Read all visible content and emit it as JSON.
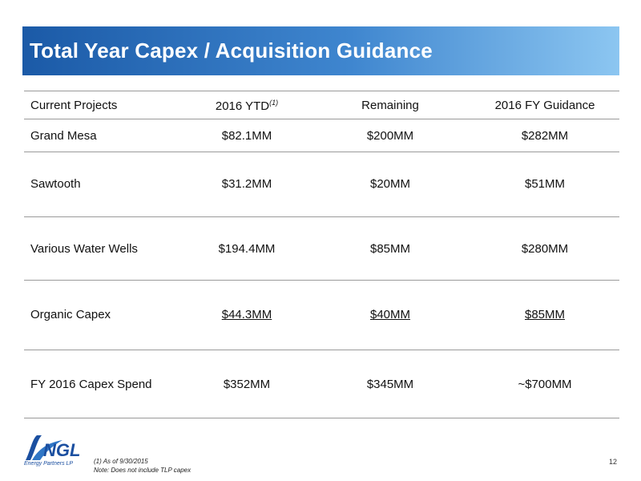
{
  "title": "Total Year Capex / Acquisition Guidance",
  "table": {
    "headers": [
      "Current Projects",
      "2016 YTD",
      "Remaining",
      "2016 FY Guidance"
    ],
    "header_footnote_marker": "(1)",
    "rows": [
      [
        "Grand Mesa",
        "$82.1MM",
        "$200MM",
        "$282MM"
      ],
      [
        "Sawtooth",
        "$31.2MM",
        "$20MM",
        "$51MM"
      ],
      [
        "Various Water Wells",
        "$194.4MM",
        "$85MM",
        "$280MM"
      ],
      [
        "Organic Capex",
        "$44.3MM",
        "$40MM",
        "$85MM"
      ],
      [
        "FY 2016 Capex Spend",
        "$352MM",
        "$345MM",
        "~$700MM"
      ]
    ]
  },
  "logo": {
    "text": "NGL",
    "tagline": "Energy Partners LP"
  },
  "footnotes": [
    "(1)    As of 9/30/2015",
    "Note: Does not include TLP capex"
  ],
  "page_number": "12",
  "colors": {
    "title_gradient_start": "#1b5aa7",
    "title_gradient_end": "#8cc6f1",
    "logo_blue": "#1b4fa0",
    "rule_gray": "#9a9a9a"
  }
}
